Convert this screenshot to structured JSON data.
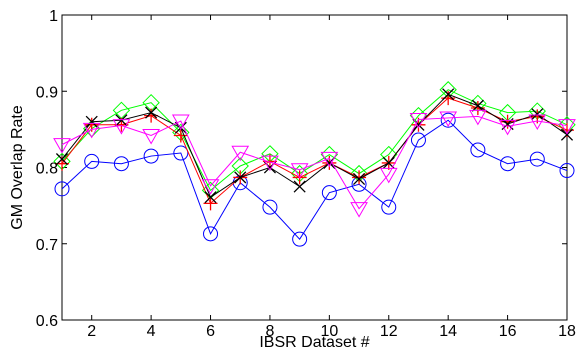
{
  "chart_data": {
    "type": "line",
    "title": "",
    "xlabel": "IBSR Dataset #",
    "ylabel": "GM Overlap Rate",
    "xlim": [
      1,
      18
    ],
    "ylim": [
      0.6,
      1.0
    ],
    "xticks": [
      2,
      4,
      6,
      8,
      10,
      12,
      14,
      16,
      18
    ],
    "yticks": [
      0.6,
      0.7,
      0.8,
      0.9,
      1.0
    ],
    "ytick_labels": [
      "0.6",
      "0.7",
      "0.8",
      "0.9",
      "1"
    ],
    "grid": false,
    "legend": false,
    "x": [
      1,
      2,
      3,
      4,
      5,
      6,
      7,
      8,
      9,
      10,
      11,
      12,
      13,
      14,
      15,
      16,
      17,
      18
    ],
    "series": [
      {
        "color": "#0000ff",
        "marker": "circle",
        "values": [
          0.772,
          0.808,
          0.805,
          0.815,
          0.819,
          0.713,
          0.78,
          0.748,
          0.706,
          0.767,
          0.778,
          0.748,
          0.836,
          0.862,
          0.823,
          0.805,
          0.811,
          0.796
        ]
      },
      {
        "color": "#00ff00",
        "marker": "diamond",
        "values": [
          0.808,
          0.851,
          0.875,
          0.885,
          0.846,
          0.77,
          0.802,
          0.818,
          0.792,
          0.817,
          0.792,
          0.817,
          0.868,
          0.902,
          0.884,
          0.872,
          0.874,
          0.856
        ]
      },
      {
        "color": "#ff0000",
        "marker": "plus",
        "values": [
          0.805,
          0.856,
          0.856,
          0.868,
          0.842,
          0.753,
          0.787,
          0.808,
          0.787,
          0.806,
          0.787,
          0.806,
          0.856,
          0.891,
          0.878,
          0.86,
          0.867,
          0.849
        ]
      },
      {
        "color": "#000000",
        "marker": "x",
        "values": [
          0.811,
          0.86,
          0.862,
          0.872,
          0.852,
          0.761,
          0.787,
          0.8,
          0.775,
          0.806,
          0.785,
          0.806,
          0.856,
          0.896,
          0.881,
          0.857,
          0.87,
          0.843
        ]
      },
      {
        "color": "#ff00ff",
        "marker": "triangle-down",
        "values": [
          0.83,
          0.85,
          0.855,
          0.842,
          0.861,
          0.776,
          0.82,
          0.807,
          0.797,
          0.812,
          0.746,
          0.791,
          0.863,
          0.865,
          0.867,
          0.854,
          0.861,
          0.855
        ]
      }
    ]
  }
}
